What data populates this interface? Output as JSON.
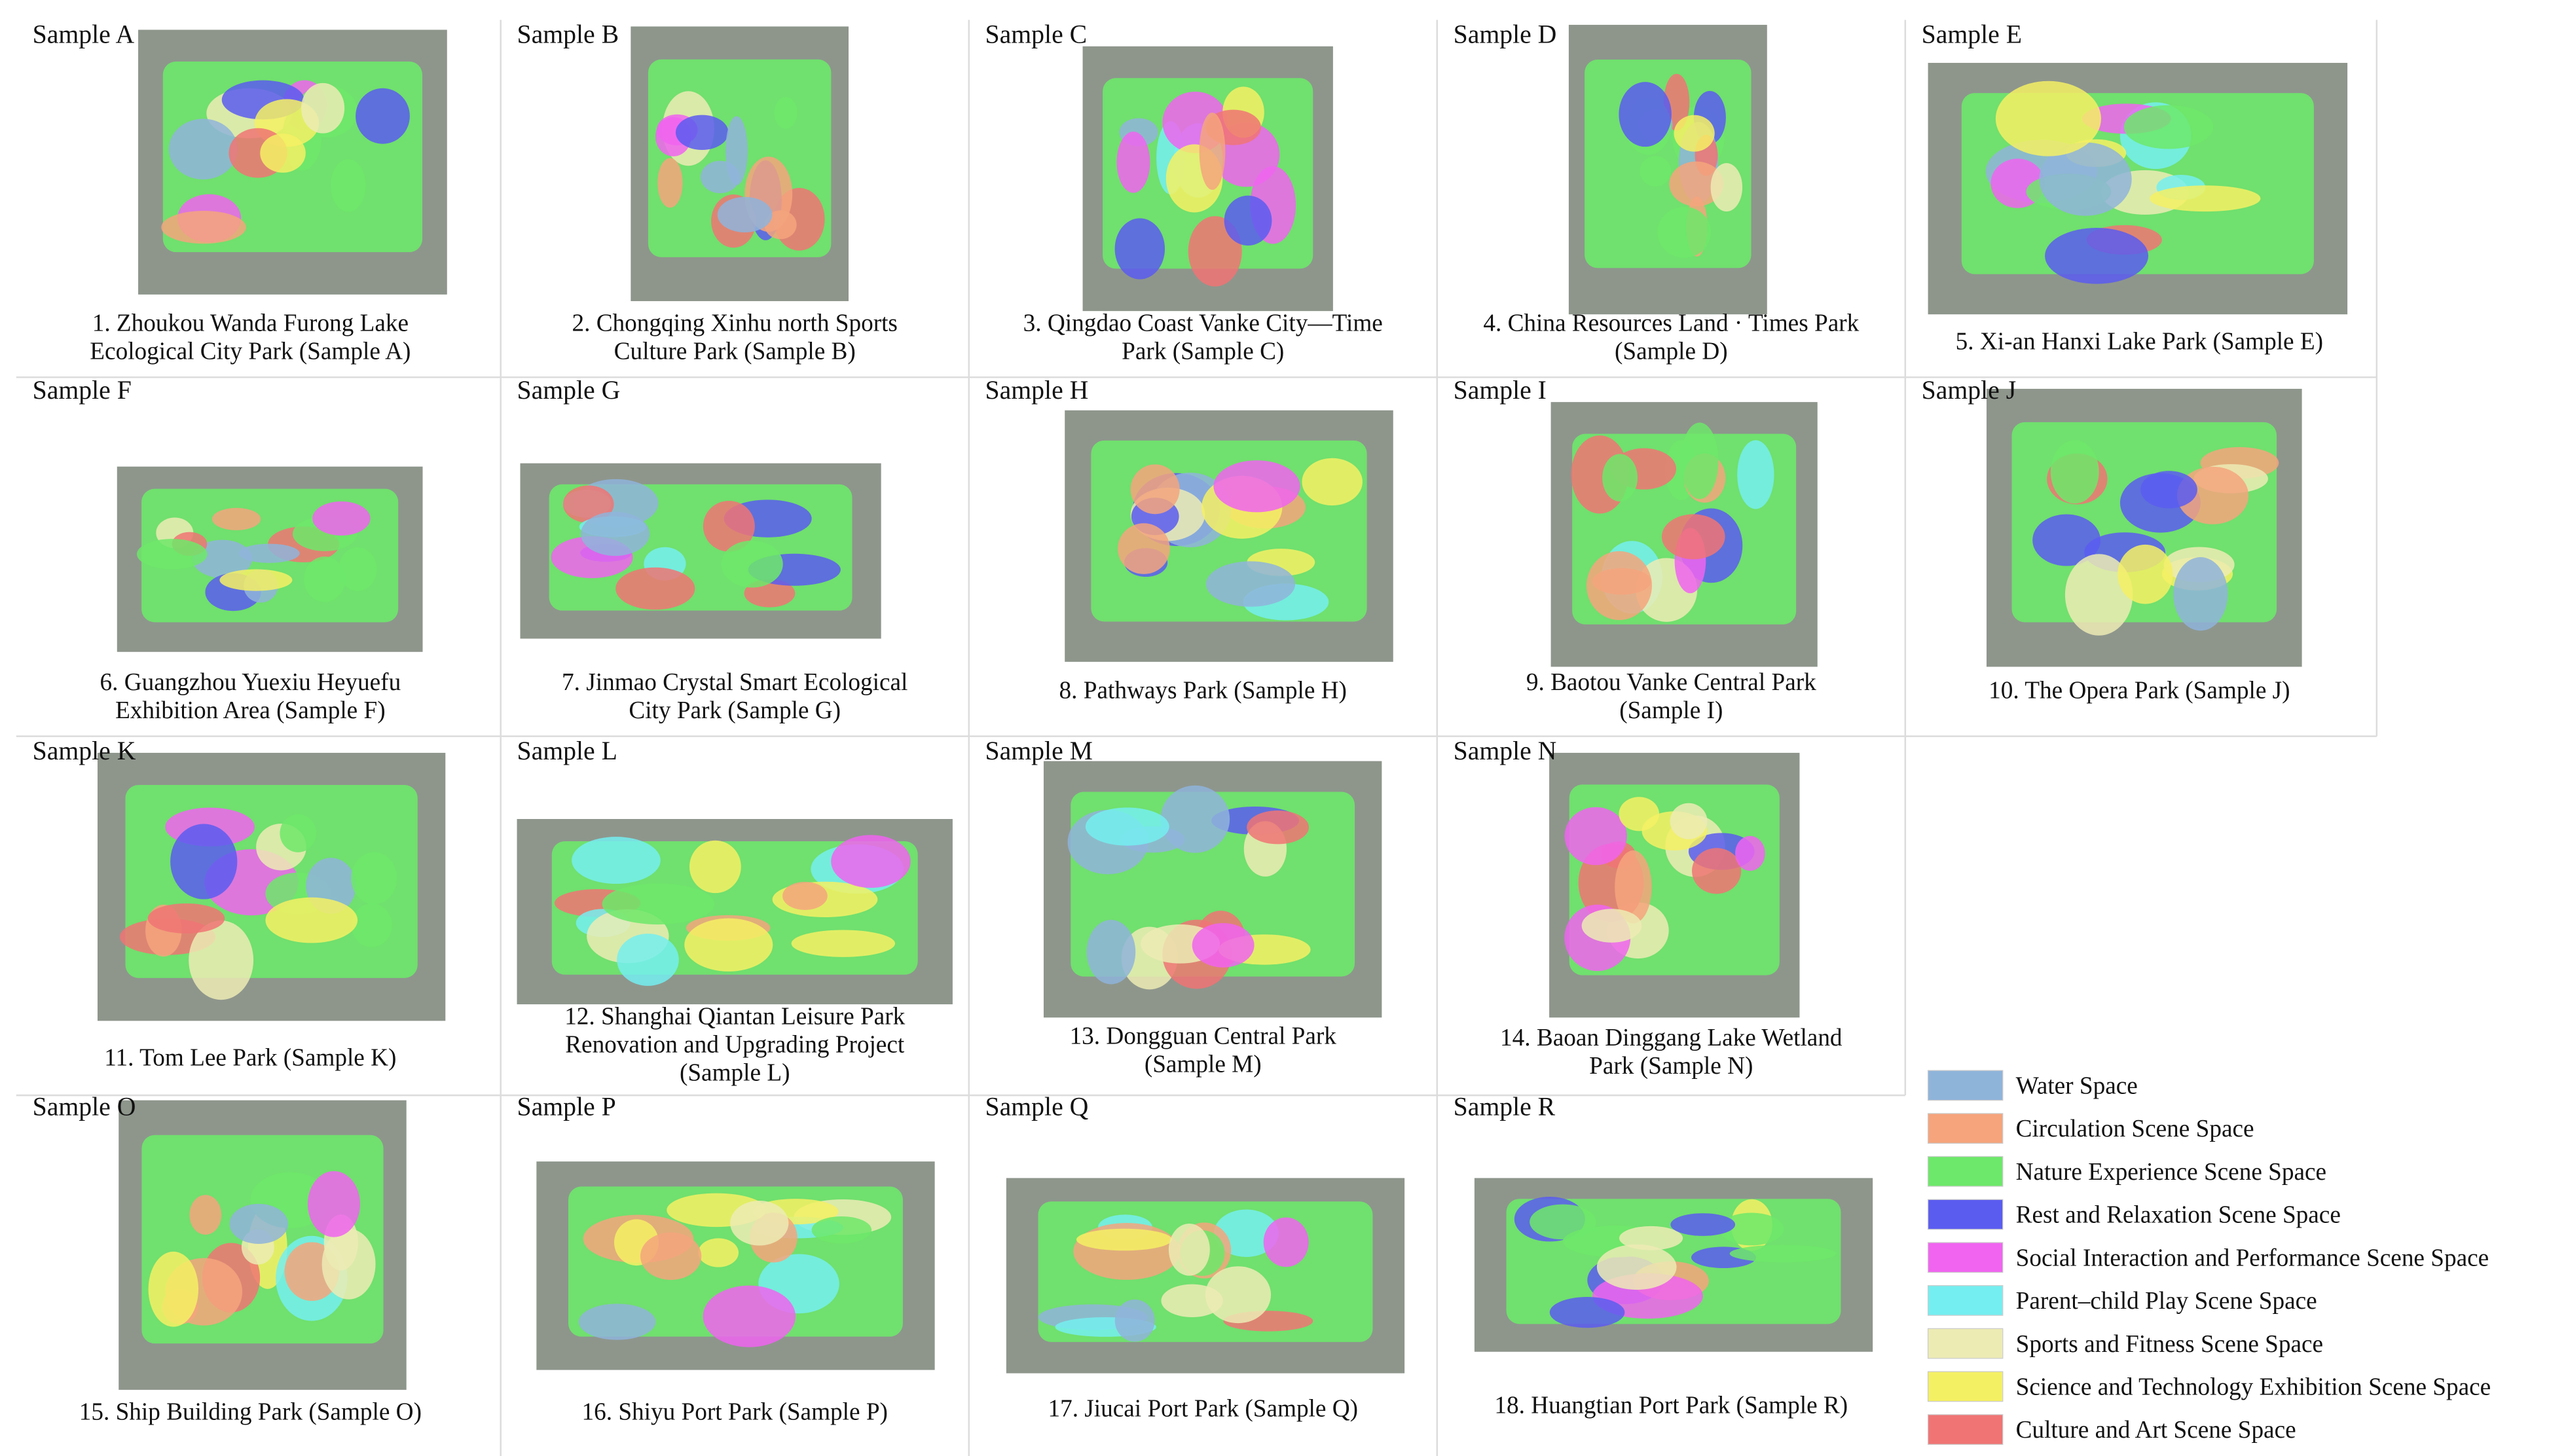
{
  "samples": [
    {
      "label": "Sample A",
      "caption": [
        "1.  Zhoukou Wanda Furong Lake",
        "Ecological City Park (Sample A)"
      ]
    },
    {
      "label": "Sample B",
      "caption": [
        "2. Chongqing Xinhu north Sports",
        "Culture Park (Sample B)"
      ]
    },
    {
      "label": "Sample C",
      "caption": [
        "3. Qingdao Coast Vanke City—Time",
        "Park (Sample C)"
      ]
    },
    {
      "label": "Sample D",
      "caption": [
        "4. China Resources Land · Times Park",
        "(Sample D)"
      ]
    },
    {
      "label": "Sample E",
      "caption": [
        "5. Xi-an Hanxi Lake Park (Sample E)"
      ]
    },
    {
      "label": "Sample F",
      "caption": [
        "6. Guangzhou Yuexiu Heyuefu",
        "Exhibition Area (Sample F)"
      ]
    },
    {
      "label": "Sample G",
      "caption": [
        "7. Jinmao Crystal Smart Ecological",
        "City Park (Sample G)"
      ]
    },
    {
      "label": "Sample H",
      "caption": [
        "8. Pathways Park (Sample H)"
      ]
    },
    {
      "label": "Sample I",
      "caption": [
        "9. Baotou Vanke Central Park",
        "(Sample I)"
      ]
    },
    {
      "label": "Sample J",
      "caption": [
        "10. The Opera Park (Sample J)"
      ]
    },
    {
      "label": "Sample K",
      "caption": [
        "11. Tom Lee Park (Sample K)"
      ]
    },
    {
      "label": "Sample L",
      "caption": [
        "12. Shanghai Qiantan Leisure Park",
        "Renovation and Upgrading Project",
        "(Sample L)"
      ]
    },
    {
      "label": "Sample M",
      "caption": [
        "13. Dongguan Central Park",
        "(Sample M)"
      ]
    },
    {
      "label": "Sample N",
      "caption": [
        "14. Baoan Dinggang Lake Wetland",
        "Park (Sample N)"
      ]
    },
    {
      "label": "Sample O",
      "caption": [
        "15. Ship Building Park (Sample O)"
      ]
    },
    {
      "label": "Sample P",
      "caption": [
        "16. Shiyu Port Park (Sample P)"
      ]
    },
    {
      "label": "Sample Q",
      "caption": [
        "17. Jiucai Port Park (Sample Q)"
      ]
    },
    {
      "label": "Sample R",
      "caption": [
        "18. Huangtian Port Park (Sample R)"
      ]
    }
  ],
  "legend": [
    {
      "label": "Water Space",
      "color": "#8fb4da"
    },
    {
      "label": "Circulation Scene Space",
      "color": "#f5a47c"
    },
    {
      "label": "Nature Experience Scene Space",
      "color": "#6de86a"
    },
    {
      "label": "Rest and Relaxation Scene Space",
      "color": "#5a5cf0"
    },
    {
      "label": "Social Interaction and Performance Scene Space",
      "color": "#f064f0"
    },
    {
      "label": "Parent–child Play Scene Space",
      "color": "#74eef0"
    },
    {
      "label": "Sports and Fitness Scene Space",
      "color": "#ecebb4"
    },
    {
      "label": "Science and Technology Exhibition Scene Space",
      "color": "#f4f064"
    },
    {
      "label": "Culture and Art Scene Space",
      "color": "#f07474"
    }
  ]
}
